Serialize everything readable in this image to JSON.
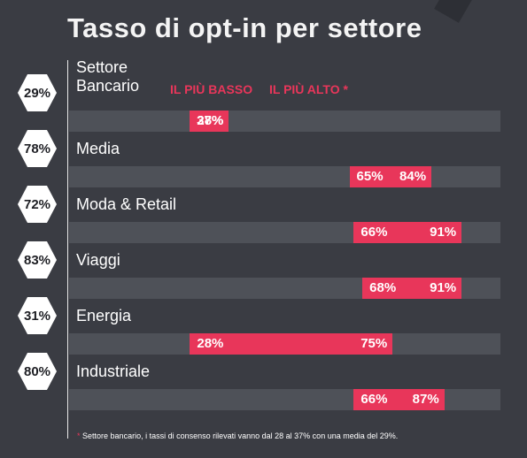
{
  "title": "Tasso di opt-in per settore",
  "legend": {
    "low_label": "IL PIÙ BASSO",
    "high_label": "IL PIÙ ALTO *"
  },
  "footnote": {
    "marker": "*",
    "text": "Settore bancario, i tassi di consenso rilevati vanno dal 28 al 37% con una media del 29%."
  },
  "colors": {
    "background": "#3a3c43",
    "track": "#4e5158",
    "range": "#e8365a",
    "badge": "#ffffff"
  },
  "chart_data": {
    "type": "bar",
    "title": "Tasso di opt-in per settore",
    "xlim": [
      0,
      100
    ],
    "rows": [
      {
        "category": "Settore Bancario",
        "average": "29%",
        "low": 28,
        "high": 37,
        "low_label": "28%",
        "high_label": "37%"
      },
      {
        "category": "Media",
        "average": "78%",
        "low": 65,
        "high": 84,
        "low_label": "65%",
        "high_label": "84%"
      },
      {
        "category": "Moda & Retail",
        "average": "72%",
        "low": 66,
        "high": 91,
        "low_label": "66%",
        "high_label": "91%"
      },
      {
        "category": "Viaggi",
        "average": "83%",
        "low": 68,
        "high": 91,
        "low_label": "68%",
        "high_label": "91%"
      },
      {
        "category": "Energia",
        "average": "31%",
        "low": 28,
        "high": 75,
        "low_label": "28%",
        "high_label": "75%"
      },
      {
        "category": "Industriale",
        "average": "80%",
        "low": 66,
        "high": 87,
        "low_label": "66%",
        "high_label": "87%"
      }
    ]
  }
}
